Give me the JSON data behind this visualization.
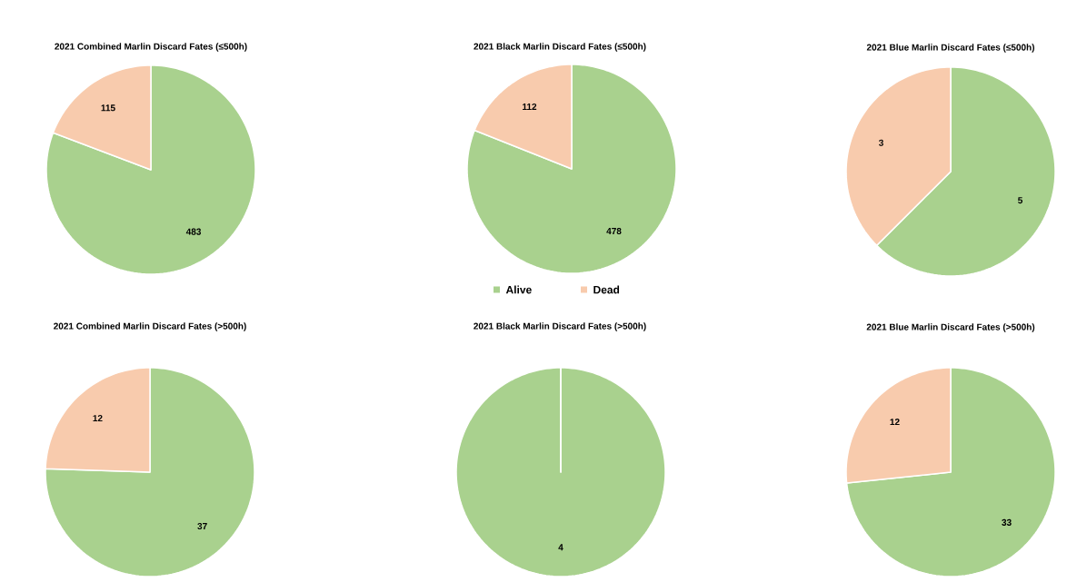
{
  "chart_data": [
    {
      "type": "pie",
      "title": "2021 Combined Marlin Discard Fates (≤500h)",
      "categories": [
        null,
        null
      ],
      "values": [
        483,
        115
      ],
      "colors": [
        "#a9d18e",
        "#f8cbad"
      ],
      "data_labels": true,
      "legend": false
    },
    {
      "type": "pie",
      "title": "2021 Black Marlin Discard Fates (≤500h)",
      "categories": [
        "Alive",
        "Dead"
      ],
      "values": [
        478,
        112
      ],
      "colors": [
        "#a9d18e",
        "#f8cbad"
      ],
      "data_labels": true,
      "legend": "bottom"
    },
    {
      "type": "pie",
      "title": "2021 Blue Marlin Discard Fates (≤500h)",
      "categories": [
        null,
        null
      ],
      "values": [
        5,
        3
      ],
      "colors": [
        "#a9d18e",
        "#f8cbad"
      ],
      "data_labels": true,
      "legend": false
    },
    {
      "type": "pie",
      "title": "2021 Combined Marlin Discard Fates (>500h)",
      "categories": [
        null,
        null
      ],
      "values": [
        37,
        12
      ],
      "colors": [
        "#a9d18e",
        "#f8cbad"
      ],
      "data_labels": true,
      "legend": false
    },
    {
      "type": "pie",
      "title": "2021 Black Marlin Discard Fates (>500h)",
      "categories": [
        null,
        null
      ],
      "values": [
        4,
        0
      ],
      "colors": [
        "#a9d18e",
        "#f8cbad"
      ],
      "value_labels": [
        "4",
        null
      ],
      "legend": false
    },
    {
      "type": "pie",
      "title": "2021 Blue Marlin Discard Fates (>500h)",
      "categories": [
        null,
        null
      ],
      "values": [
        33,
        12
      ],
      "colors": [
        "#a9d18e",
        "#f8cbad"
      ],
      "data_labels": true,
      "legend": false
    }
  ]
}
